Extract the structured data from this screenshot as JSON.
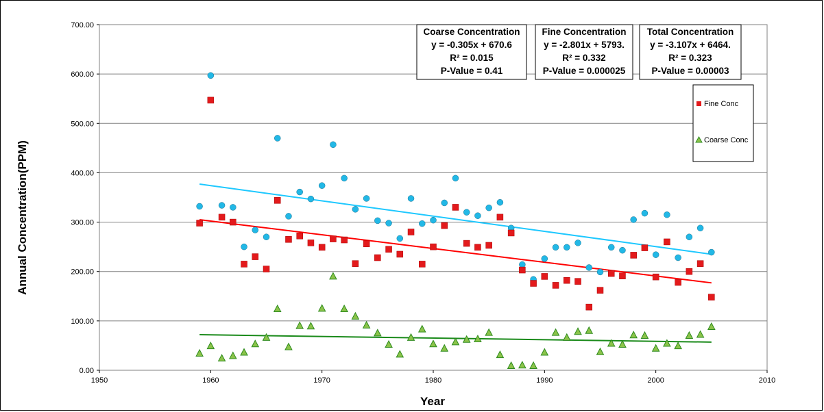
{
  "chart_data": {
    "type": "scatter",
    "title": "",
    "xlabel": "Year",
    "ylabel": "Annual  Concentration(PPM)",
    "xlim": [
      1950,
      2010
    ],
    "ylim": [
      0,
      700
    ],
    "x_ticks": [
      "1950",
      "1960",
      "1970",
      "1980",
      "1990",
      "2000",
      "2010"
    ],
    "y_ticks": [
      "0.00",
      "100.00",
      "200.00",
      "300.00",
      "400.00",
      "500.00",
      "600.00",
      "700.00"
    ],
    "grid": "horizontal",
    "legend_position": "right",
    "series": [
      {
        "name": "Fine Conc",
        "marker": "square",
        "color": "#e31a1c",
        "points": [
          [
            1959,
            298
          ],
          [
            1960,
            547
          ],
          [
            1961,
            310
          ],
          [
            1962,
            300
          ],
          [
            1963,
            215
          ],
          [
            1964,
            230
          ],
          [
            1965,
            205
          ],
          [
            1966,
            344
          ],
          [
            1967,
            265
          ],
          [
            1968,
            272
          ],
          [
            1969,
            258
          ],
          [
            1970,
            249
          ],
          [
            1971,
            266
          ],
          [
            1972,
            264
          ],
          [
            1973,
            216
          ],
          [
            1974,
            256
          ],
          [
            1975,
            228
          ],
          [
            1976,
            245
          ],
          [
            1977,
            235
          ],
          [
            1978,
            280
          ],
          [
            1979,
            215
          ],
          [
            1980,
            250
          ],
          [
            1981,
            293
          ],
          [
            1982,
            330
          ],
          [
            1983,
            257
          ],
          [
            1984,
            249
          ],
          [
            1985,
            253
          ],
          [
            1986,
            310
          ],
          [
            1987,
            278
          ],
          [
            1988,
            203
          ],
          [
            1989,
            176
          ],
          [
            1990,
            190
          ],
          [
            1991,
            172
          ],
          [
            1992,
            182
          ],
          [
            1993,
            180
          ],
          [
            1994,
            128
          ],
          [
            1995,
            162
          ],
          [
            1996,
            196
          ],
          [
            1997,
            191
          ],
          [
            1998,
            233
          ],
          [
            1999,
            248
          ],
          [
            2000,
            189
          ],
          [
            2001,
            260
          ],
          [
            2002,
            178
          ],
          [
            2003,
            200
          ],
          [
            2004,
            216
          ],
          [
            2005,
            148
          ]
        ],
        "trend": {
          "color": "#ff0000",
          "y_start": 305,
          "y_end": 177
        }
      },
      {
        "name": "Coarse Conc",
        "marker": "triangle",
        "color": "#2e8b1e",
        "points": [
          [
            1959,
            34
          ],
          [
            1960,
            49
          ],
          [
            1961,
            24
          ],
          [
            1962,
            29
          ],
          [
            1963,
            36
          ],
          [
            1964,
            53
          ],
          [
            1965,
            66
          ],
          [
            1966,
            124
          ],
          [
            1967,
            47
          ],
          [
            1968,
            90
          ],
          [
            1969,
            89
          ],
          [
            1970,
            125
          ],
          [
            1971,
            190
          ],
          [
            1972,
            124
          ],
          [
            1973,
            109
          ],
          [
            1974,
            91
          ],
          [
            1975,
            75
          ],
          [
            1976,
            52
          ],
          [
            1977,
            32
          ],
          [
            1978,
            66
          ],
          [
            1979,
            83
          ],
          [
            1980,
            53
          ],
          [
            1981,
            44
          ],
          [
            1982,
            57
          ],
          [
            1983,
            62
          ],
          [
            1984,
            63
          ],
          [
            1985,
            76
          ],
          [
            1986,
            31
          ],
          [
            1987,
            9
          ],
          [
            1988,
            10
          ],
          [
            1989,
            9
          ],
          [
            1990,
            36
          ],
          [
            1991,
            76
          ],
          [
            1992,
            66
          ],
          [
            1993,
            78
          ],
          [
            1994,
            80
          ],
          [
            1995,
            37
          ],
          [
            1996,
            54
          ],
          [
            1997,
            52
          ],
          [
            1998,
            71
          ],
          [
            1999,
            70
          ],
          [
            2000,
            44
          ],
          [
            2001,
            54
          ],
          [
            2002,
            49
          ],
          [
            2003,
            70
          ],
          [
            2004,
            72
          ],
          [
            2005,
            88
          ]
        ],
        "trend": {
          "color": "#1a8a1a",
          "y_start": 72,
          "y_end": 57
        }
      },
      {
        "name": "",
        "marker": "circle",
        "color": "#22b8e6",
        "points": [
          [
            1959,
            332
          ],
          [
            1960,
            597
          ],
          [
            1961,
            334
          ],
          [
            1962,
            330
          ],
          [
            1963,
            250
          ],
          [
            1964,
            284
          ],
          [
            1965,
            270
          ],
          [
            1966,
            470
          ],
          [
            1967,
            312
          ],
          [
            1968,
            361
          ],
          [
            1969,
            347
          ],
          [
            1970,
            374
          ],
          [
            1971,
            457
          ],
          [
            1972,
            389
          ],
          [
            1973,
            326
          ],
          [
            1974,
            348
          ],
          [
            1975,
            303
          ],
          [
            1976,
            298
          ],
          [
            1977,
            267
          ],
          [
            1978,
            348
          ],
          [
            1979,
            297
          ],
          [
            1980,
            304
          ],
          [
            1981,
            339
          ],
          [
            1982,
            389
          ],
          [
            1983,
            320
          ],
          [
            1984,
            313
          ],
          [
            1985,
            329
          ],
          [
            1986,
            340
          ],
          [
            1987,
            288
          ],
          [
            1988,
            214
          ],
          [
            1989,
            184
          ],
          [
            1990,
            226
          ],
          [
            1991,
            249
          ],
          [
            1992,
            249
          ],
          [
            1993,
            258
          ],
          [
            1994,
            208
          ],
          [
            1995,
            199
          ],
          [
            1996,
            249
          ],
          [
            1997,
            243
          ],
          [
            1998,
            305
          ],
          [
            1999,
            318
          ],
          [
            2000,
            234
          ],
          [
            2001,
            315
          ],
          [
            2002,
            228
          ],
          [
            2003,
            270
          ],
          [
            2004,
            288
          ],
          [
            2005,
            239
          ]
        ],
        "trend": {
          "color": "#1ec8ff",
          "y_start": 377,
          "y_end": 235
        }
      }
    ],
    "stat_boxes": [
      {
        "title": "Coarse Concentration",
        "equation": "y = -0.305x + 670.6",
        "r2": "R² = 0.015",
        "pvalue": "P-Value = 0.41"
      },
      {
        "title": "Fine Concentration",
        "equation": "y = -2.801x + 5793.",
        "r2": "R² = 0.332",
        "pvalue": "P-Value = 0.000025"
      },
      {
        "title": "Total Concentration",
        "equation": "y = -3.107x + 6464.",
        "r2": "R² = 0.323",
        "pvalue": "P-Value = 0.00003"
      }
    ],
    "legend": [
      {
        "label": "Fine Conc",
        "marker": "square",
        "color": "#e31a1c"
      },
      {
        "label": "Coarse Conc",
        "marker": "triangle",
        "color": "#2e8b1e"
      }
    ]
  }
}
